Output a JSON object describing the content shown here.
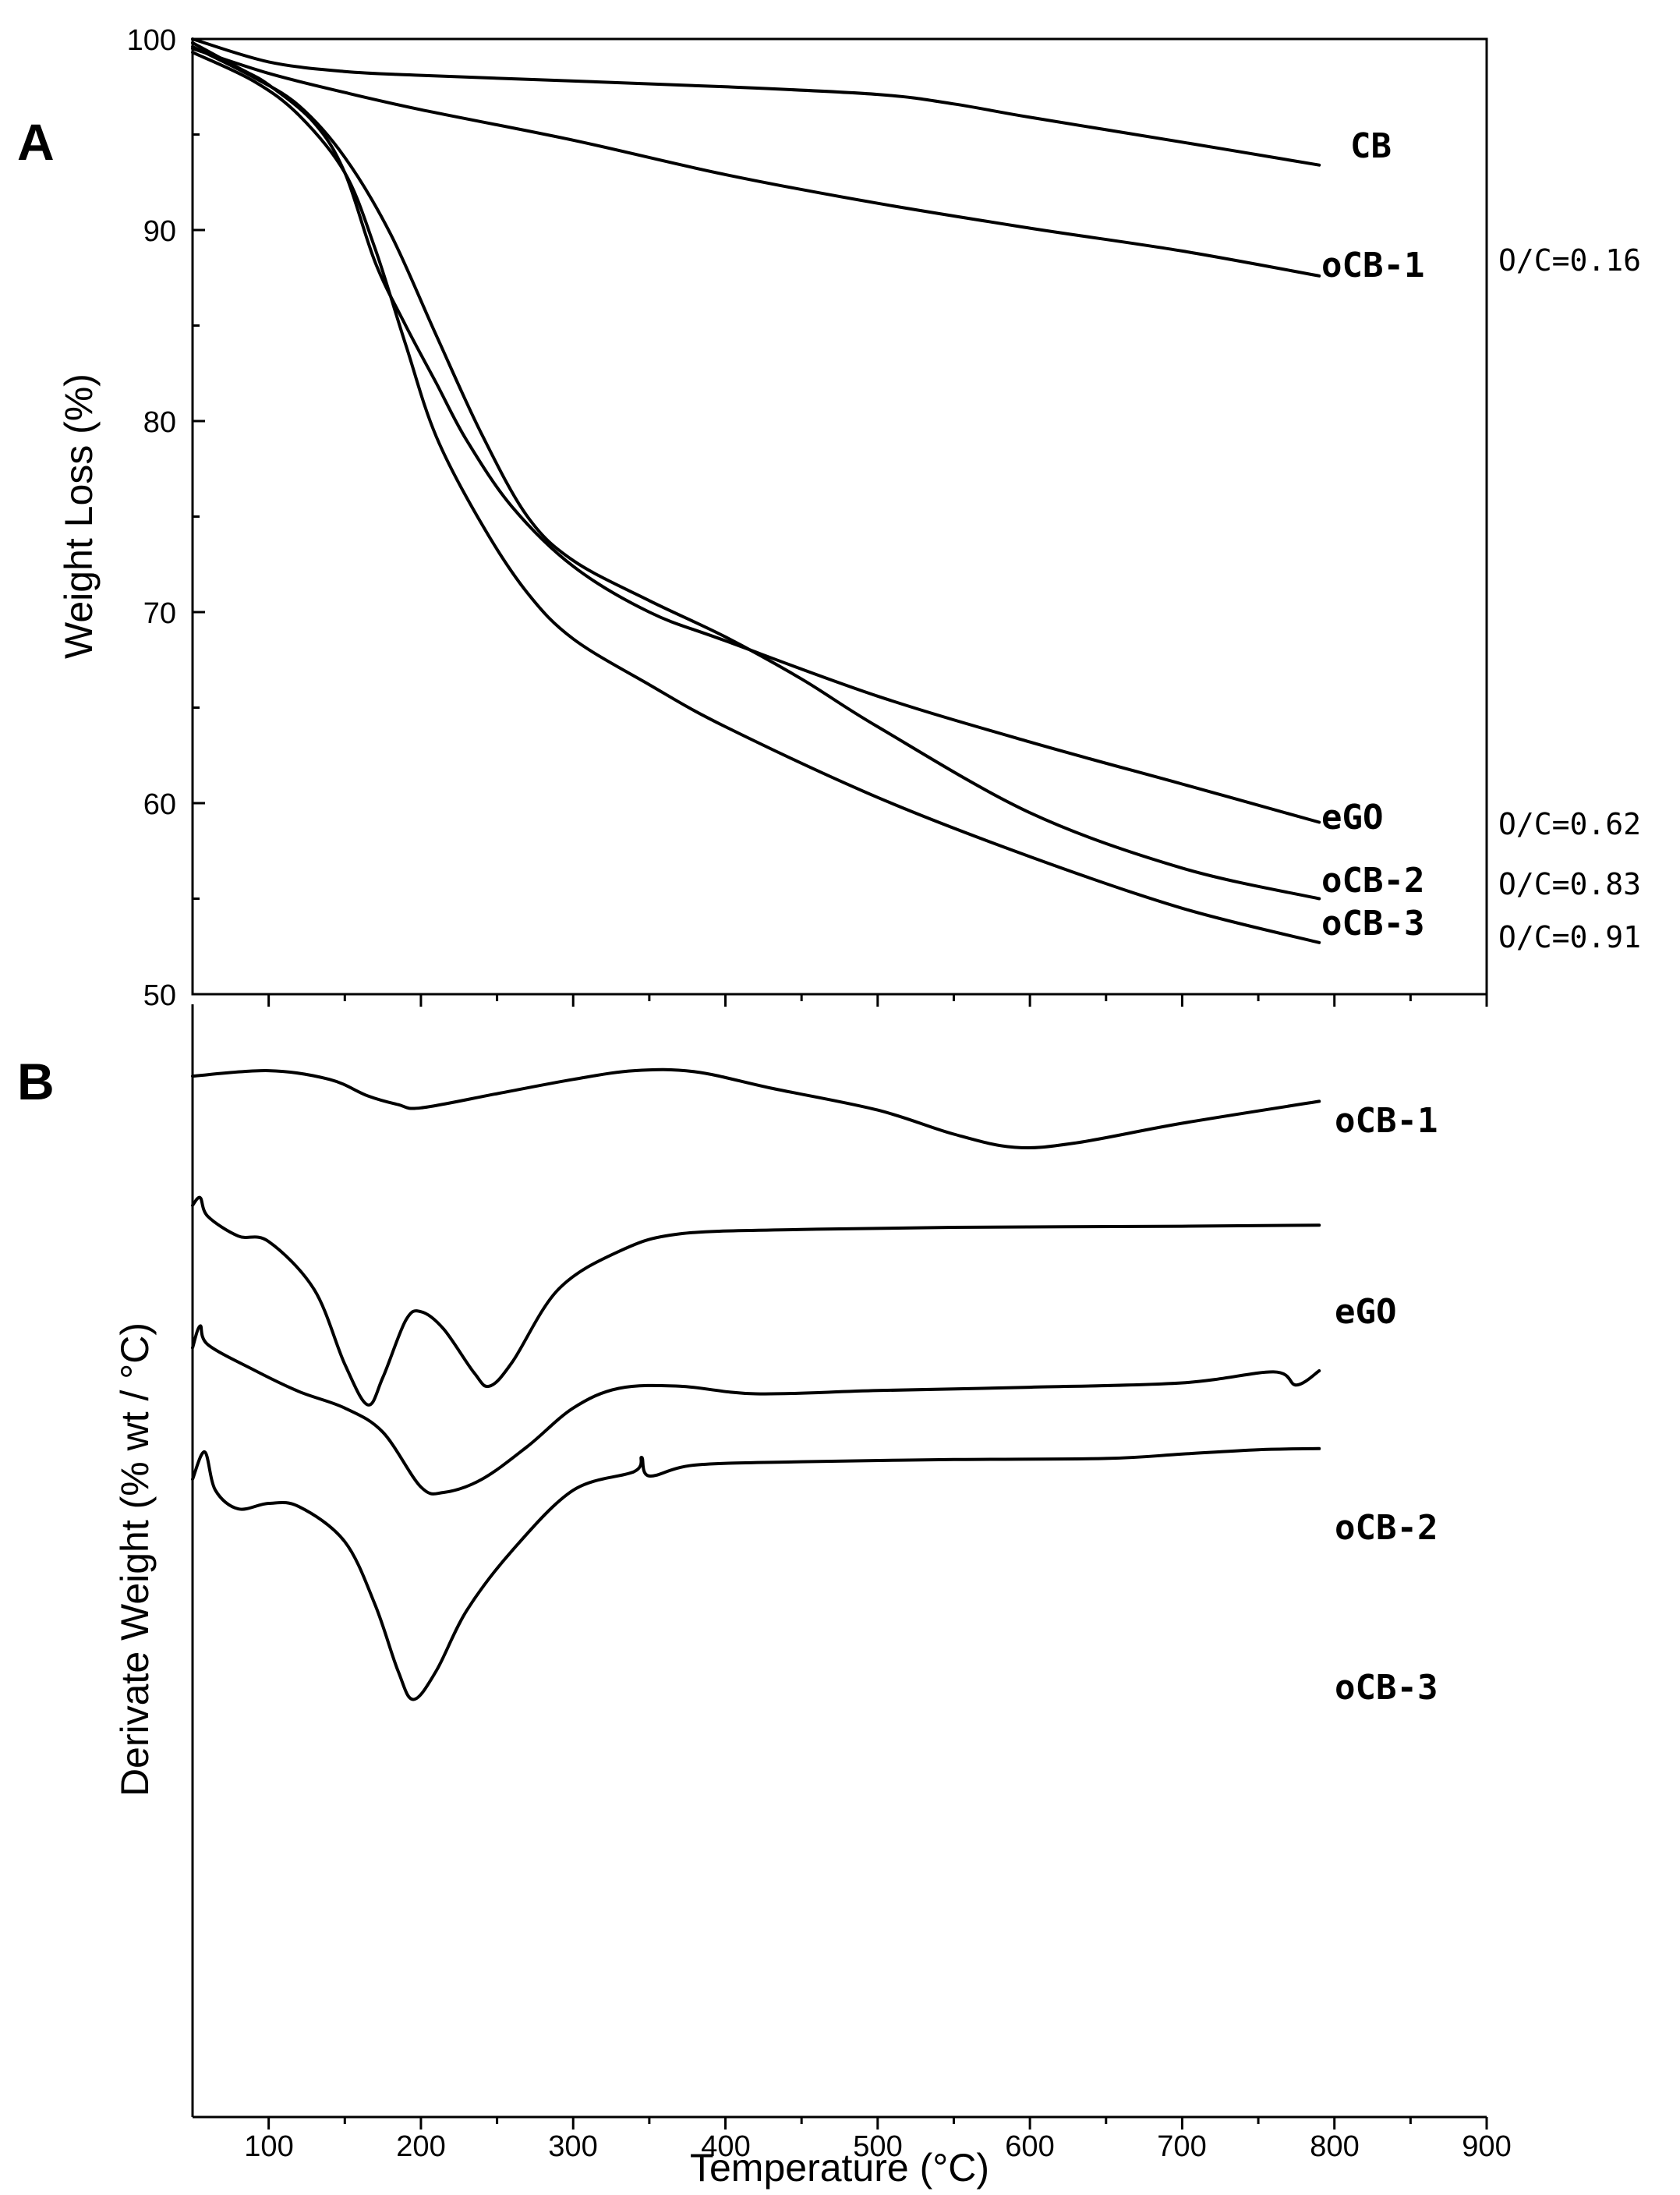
{
  "chart_data": [
    {
      "panel": "A",
      "type": "line",
      "ylabel": "Weight Loss (%)",
      "xlim": [
        50,
        900
      ],
      "ylim": [
        50,
        100
      ],
      "yticks": [
        50,
        60,
        70,
        80,
        90,
        100
      ],
      "series": [
        {
          "name": "CB",
          "label": "CB",
          "ratio": "",
          "points": [
            [
              50,
              100
            ],
            [
              100,
              98.8
            ],
            [
              150,
              98.3
            ],
            [
              200,
              98.1
            ],
            [
              300,
              97.8
            ],
            [
              400,
              97.5
            ],
            [
              500,
              97.1
            ],
            [
              550,
              96.6
            ],
            [
              600,
              95.9
            ],
            [
              700,
              94.6
            ],
            [
              790,
              93.4
            ]
          ]
        },
        {
          "name": "oCB-1",
          "label": "oCB-1",
          "ratio": "O/C=0.16",
          "points": [
            [
              50,
              99.5
            ],
            [
              100,
              98.2
            ],
            [
              150,
              97.2
            ],
            [
              200,
              96.3
            ],
            [
              300,
              94.7
            ],
            [
              400,
              92.9
            ],
            [
              500,
              91.4
            ],
            [
              600,
              90.1
            ],
            [
              700,
              88.9
            ],
            [
              790,
              87.6
            ]
          ]
        },
        {
          "name": "eGO",
          "label": "eGO",
          "ratio": "O/C=0.62",
          "points": [
            [
              50,
              99.8
            ],
            [
              80,
              98.5
            ],
            [
              100,
              97.6
            ],
            [
              130,
              95.6
            ],
            [
              150,
              93.0
            ],
            [
              170,
              88.3
            ],
            [
              190,
              85.0
            ],
            [
              210,
              82.0
            ],
            [
              230,
              79.0
            ],
            [
              260,
              75.5
            ],
            [
              300,
              72.4
            ],
            [
              350,
              70.0
            ],
            [
              400,
              68.5
            ],
            [
              500,
              65.6
            ],
            [
              600,
              63.2
            ],
            [
              700,
              61.0
            ],
            [
              790,
              59.0
            ]
          ]
        },
        {
          "name": "oCB-2",
          "label": "oCB-2",
          "ratio": "O/C=0.83",
          "points": [
            [
              50,
              99.6
            ],
            [
              90,
              98.0
            ],
            [
              120,
              96.5
            ],
            [
              150,
              93.8
            ],
            [
              180,
              89.8
            ],
            [
              210,
              84.5
            ],
            [
              240,
              79.3
            ],
            [
              270,
              75.0
            ],
            [
              300,
              72.7
            ],
            [
              350,
              70.6
            ],
            [
              400,
              68.7
            ],
            [
              450,
              66.5
            ],
            [
              500,
              64.0
            ],
            [
              600,
              59.5
            ],
            [
              700,
              56.6
            ],
            [
              790,
              55.0
            ]
          ]
        },
        {
          "name": "oCB-3",
          "label": "oCB-3",
          "ratio": "O/C=0.91",
          "points": [
            [
              50,
              99.3
            ],
            [
              90,
              97.8
            ],
            [
              120,
              96.0
            ],
            [
              150,
              93.0
            ],
            [
              170,
              89.0
            ],
            [
              190,
              84.0
            ],
            [
              210,
              79.2
            ],
            [
              240,
              74.6
            ],
            [
              270,
              71.0
            ],
            [
              300,
              68.6
            ],
            [
              350,
              66.2
            ],
            [
              400,
              64.0
            ],
            [
              500,
              60.3
            ],
            [
              600,
              57.2
            ],
            [
              700,
              54.5
            ],
            [
              790,
              52.7
            ]
          ]
        }
      ]
    },
    {
      "panel": "B",
      "type": "line",
      "xlabel": "Temperature (°C)",
      "ylabel": "Derivate Weight (% wt / °C)",
      "xlim": [
        50,
        900
      ],
      "xticks": [
        100,
        200,
        300,
        400,
        500,
        600,
        700,
        800,
        900
      ],
      "ylim": [
        0,
        100
      ],
      "yunits": "relative (no tick labels)",
      "series": [
        {
          "name": "oCB-1",
          "label": "oCB-1",
          "points": [
            [
              50,
              94.3
            ],
            [
              100,
              94.8
            ],
            [
              140,
              94.0
            ],
            [
              165,
              92.5
            ],
            [
              185,
              91.7
            ],
            [
              200,
              91.4
            ],
            [
              250,
              92.7
            ],
            [
              300,
              94.0
            ],
            [
              340,
              94.8
            ],
            [
              380,
              94.7
            ],
            [
              430,
              93.2
            ],
            [
              500,
              91.2
            ],
            [
              550,
              89.0
            ],
            [
              590,
              87.8
            ],
            [
              630,
              88.2
            ],
            [
              700,
              90.0
            ],
            [
              790,
              92.0
            ]
          ]
        },
        {
          "name": "eGO",
          "label": "eGO",
          "points": [
            [
              50,
              82.5
            ],
            [
              55,
              83.2
            ],
            [
              60,
              81.5
            ],
            [
              80,
              79.7
            ],
            [
              100,
              79.2
            ],
            [
              130,
              74.8
            ],
            [
              150,
              68.0
            ],
            [
              165,
              64.3
            ],
            [
              175,
              66.8
            ],
            [
              190,
              72.0
            ],
            [
              200,
              72.8
            ],
            [
              215,
              71.2
            ],
            [
              235,
              67.2
            ],
            [
              245,
              66.0
            ],
            [
              260,
              68.2
            ],
            [
              290,
              74.8
            ],
            [
              330,
              78.3
            ],
            [
              370,
              79.9
            ],
            [
              450,
              80.3
            ],
            [
              550,
              80.5
            ],
            [
              700,
              80.6
            ],
            [
              790,
              80.7
            ]
          ]
        },
        {
          "name": "oCB-2",
          "label": "oCB-2",
          "points": [
            [
              50,
              69.5
            ],
            [
              55,
              71.5
            ],
            [
              60,
              69.8
            ],
            [
              90,
              67.5
            ],
            [
              120,
              65.5
            ],
            [
              150,
              64.0
            ],
            [
              175,
              61.8
            ],
            [
              200,
              56.8
            ],
            [
              215,
              56.3
            ],
            [
              240,
              57.5
            ],
            [
              270,
              60.5
            ],
            [
              300,
              64.0
            ],
            [
              330,
              65.8
            ],
            [
              370,
              66.0
            ],
            [
              420,
              65.3
            ],
            [
              500,
              65.6
            ],
            [
              600,
              65.9
            ],
            [
              700,
              66.3
            ],
            [
              760,
              67.3
            ],
            [
              775,
              66.1
            ],
            [
              790,
              67.4
            ]
          ]
        },
        {
          "name": "oCB-3",
          "label": "oCB-3",
          "points": [
            [
              50,
              57.5
            ],
            [
              58,
              60.0
            ],
            [
              65,
              56.5
            ],
            [
              80,
              54.8
            ],
            [
              100,
              55.3
            ],
            [
              120,
              55.0
            ],
            [
              150,
              51.8
            ],
            [
              170,
              46.0
            ],
            [
              185,
              40.0
            ],
            [
              195,
              37.4
            ],
            [
              210,
              40.0
            ],
            [
              230,
              45.5
            ],
            [
              260,
              51.0
            ],
            [
              300,
              56.5
            ],
            [
              340,
              58.2
            ],
            [
              345,
              59.5
            ],
            [
              350,
              57.8
            ],
            [
              380,
              58.8
            ],
            [
              450,
              59.1
            ],
            [
              550,
              59.3
            ],
            [
              650,
              59.4
            ],
            [
              700,
              59.8
            ],
            [
              750,
              60.2
            ],
            [
              790,
              60.3
            ]
          ]
        }
      ]
    }
  ],
  "panelA": {
    "letter": "A",
    "ylabel": "Weight Loss (%)",
    "yticks": [
      "50",
      "60",
      "70",
      "80",
      "90",
      "100"
    ],
    "labels": [
      "CB",
      "oCB-1",
      "eGO",
      "oCB-2",
      "oCB-3"
    ],
    "ratios": [
      "O/C=0.16",
      "O/C=0.62",
      "O/C=0.83",
      "O/C=0.91"
    ]
  },
  "panelB": {
    "letter": "B",
    "ylabel": "Derivate Weight (% wt / °C)",
    "xlabel": "Temperature (°C)",
    "xticks": [
      "100",
      "200",
      "300",
      "400",
      "500",
      "600",
      "700",
      "800",
      "900"
    ],
    "labels": [
      "oCB-1",
      "eGO",
      "oCB-2",
      "oCB-3"
    ]
  }
}
